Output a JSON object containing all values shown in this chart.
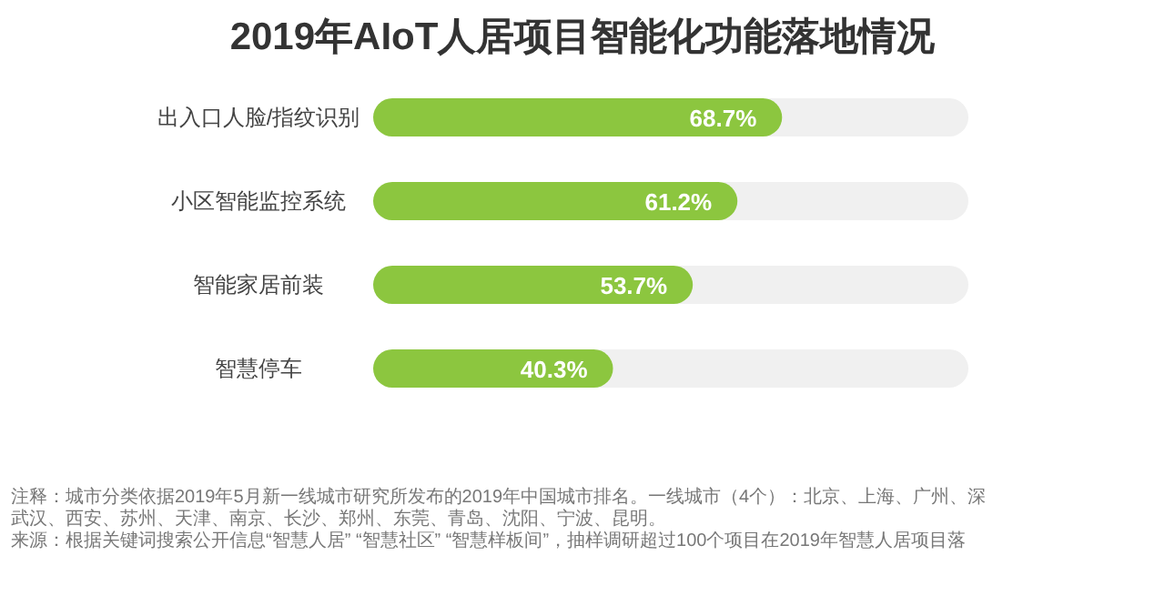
{
  "chart_data": {
    "type": "bar",
    "orientation": "horizontal",
    "title": "2019年AIoT人居项目智能化功能落地情况",
    "categories": [
      "出入口人脸/指纹识别",
      "小区智能监控系统",
      "智能家居前装",
      "智慧停车"
    ],
    "values": [
      68.7,
      61.2,
      53.7,
      40.3
    ],
    "value_labels": [
      "68.7%",
      "61.2%",
      "53.7%",
      "40.3%"
    ],
    "color": "#8cc63f",
    "xlim": [
      0,
      100
    ],
    "tick_labels": "y",
    "annotations": [
      "注释：城市分类依据2019年5月新一线城市研究所发布的2019年中国城市排名。一线城市（4个）：北京、上海、广州、深",
      "武汉、西安、苏州、天津、南京、长沙、郑州、东莞、青岛、沈阳、宁波、昆明。",
      "来源：根据关键词搜索公开信息“智慧人居” “智慧社区” “智慧样板间”，抽样调研超过100个项目在2019年智慧人居项目落"
    ]
  }
}
